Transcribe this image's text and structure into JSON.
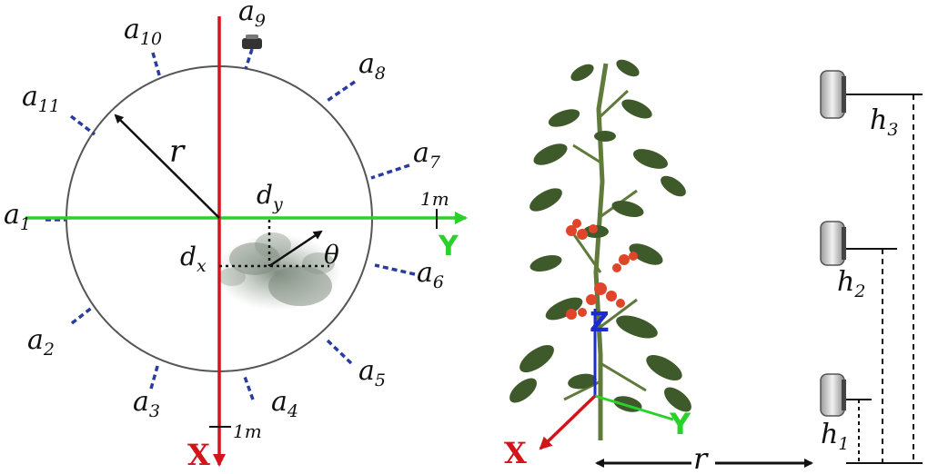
{
  "left_diagram": {
    "radius_label": "r",
    "theta_label": "θ",
    "dx_label": "d",
    "dx_sub": "x",
    "dy_label": "d",
    "dy_sub": "y",
    "y_axis_label": "Y",
    "x_axis_label": "X",
    "y_scale_label": "1m",
    "x_scale_label": "1m",
    "cameras": [
      {
        "name": "a",
        "index": "1"
      },
      {
        "name": "a",
        "index": "2"
      },
      {
        "name": "a",
        "index": "3"
      },
      {
        "name": "a",
        "index": "4"
      },
      {
        "name": "a",
        "index": "5"
      },
      {
        "name": "a",
        "index": "6"
      },
      {
        "name": "a",
        "index": "7"
      },
      {
        "name": "a",
        "index": "8"
      },
      {
        "name": "a",
        "index": "9"
      },
      {
        "name": "a",
        "index": "10"
      },
      {
        "name": "a",
        "index": "11"
      }
    ]
  },
  "right_diagram": {
    "z_axis_label": "Z",
    "y_axis_label": "Y",
    "x_axis_label": "X",
    "distance_label": "r",
    "heights": [
      {
        "name": "h",
        "index": "3"
      },
      {
        "name": "h",
        "index": "2"
      },
      {
        "name": "h",
        "index": "1"
      }
    ]
  },
  "colors": {
    "x_axis": "#d4141b",
    "y_axis": "#2bd12b",
    "z_axis": "#1b2bd0",
    "camera_ray": "#2a3d9e",
    "circle": "#555555",
    "leaf": "#3f5a2a",
    "fruit": "#e0452a"
  }
}
